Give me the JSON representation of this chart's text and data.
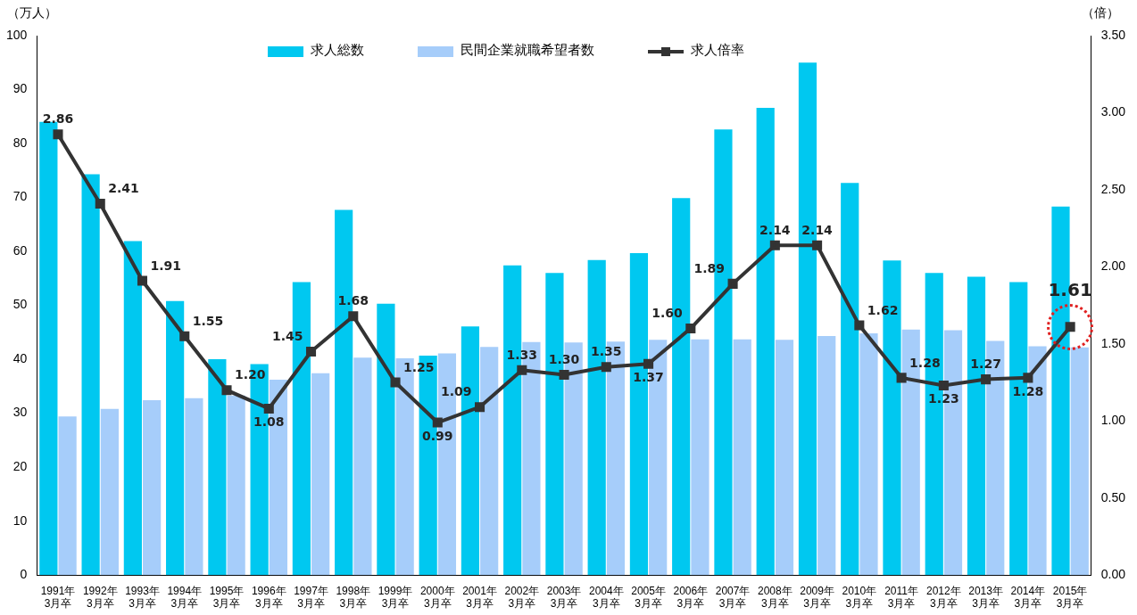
{
  "chart_data": {
    "type": "bar",
    "ylabel": "（万人）",
    "y2label": "（倍）",
    "categories": [
      "1991年\n3月卒",
      "1992年\n3月卒",
      "1993年\n3月卒",
      "1994年\n3月卒",
      "1995年\n3月卒",
      "1996年\n3月卒",
      "1997年\n3月卒",
      "1998年\n3月卒",
      "1999年\n3月卒",
      "2000年\n3月卒",
      "2001年\n3月卒",
      "2002年\n3月卒",
      "2003年\n3月卒",
      "2004年\n3月卒",
      "2005年\n3月卒",
      "2006年\n3月卒",
      "2007年\n3月卒",
      "2008年\n3月卒",
      "2009年\n3月卒",
      "2010年\n3月卒",
      "2011年\n3月卒",
      "2012年\n3月卒",
      "2013年\n3月卒",
      "2014年\n3月卒",
      "2015年\n3月卒"
    ],
    "series": [
      {
        "name": "求人総数",
        "color": "#00c8f0",
        "values": [
          84.0,
          74.3,
          61.9,
          50.8,
          40.0,
          39.1,
          54.3,
          67.7,
          50.3,
          40.7,
          46.1,
          57.4,
          56.0,
          58.4,
          59.7,
          69.9,
          82.6,
          86.6,
          95.0,
          72.7,
          58.3,
          56.0,
          55.3,
          54.3,
          68.3
        ]
      },
      {
        "name": "民間企業就職希望者数",
        "color": "#a6cdfa",
        "values": [
          29.4,
          30.8,
          32.4,
          32.8,
          33.3,
          36.2,
          37.4,
          40.3,
          40.2,
          41.1,
          42.3,
          43.2,
          43.1,
          43.3,
          43.6,
          43.7,
          43.7,
          43.6,
          44.3,
          44.8,
          45.5,
          45.4,
          43.4,
          42.4,
          42.2
        ]
      },
      {
        "name": "求人倍率",
        "type": "line",
        "axis": "y2",
        "color": "#333333",
        "marker": "square",
        "values": [
          2.86,
          2.41,
          1.91,
          1.55,
          1.2,
          1.08,
          1.45,
          1.68,
          1.25,
          0.99,
          1.09,
          1.33,
          1.3,
          1.35,
          1.37,
          1.6,
          1.89,
          2.14,
          2.14,
          1.62,
          1.28,
          1.23,
          1.27,
          1.28,
          1.61
        ],
        "value_labels": [
          "2.86",
          "2.41",
          "1.91",
          "1.55",
          "1.20",
          "1.08",
          "1.45",
          "1.68",
          "1.25",
          "0.99",
          "1.09",
          "1.33",
          "1.30",
          "1.35",
          "1.37",
          "1.60",
          "1.89",
          "2.14",
          "2.14",
          "1.62",
          "1.28",
          "1.23",
          "1.27",
          "1.28",
          "1.61"
        ]
      }
    ],
    "ylim": [
      0,
      100
    ],
    "yticks": [
      0,
      10,
      20,
      30,
      40,
      50,
      60,
      70,
      80,
      90,
      100
    ],
    "y2lim": [
      0,
      3.5
    ],
    "y2ticks": [
      {
        "value": 0,
        "label": "0.00"
      },
      {
        "value": 0.5,
        "label": "0.50"
      },
      {
        "value": 1,
        "label": "1.00"
      },
      {
        "value": 1.5,
        "label": "1.50"
      },
      {
        "value": 2,
        "label": "2.00"
      },
      {
        "value": 2.5,
        "label": "2.50"
      },
      {
        "value": 3,
        "label": "3.00"
      },
      {
        "value": 3.5,
        "label": "3.50"
      }
    ],
    "grid": false,
    "legend": "top"
  }
}
